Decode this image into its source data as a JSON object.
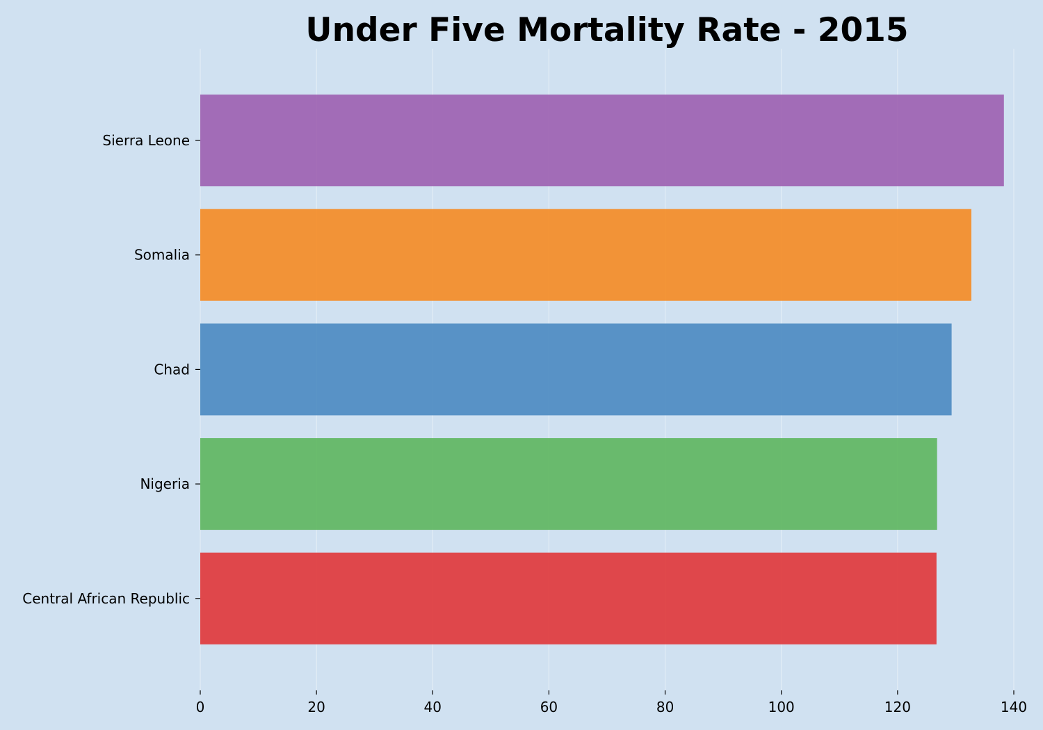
{
  "chart_data": {
    "type": "bar",
    "orientation": "horizontal",
    "title": "Under Five Mortality Rate - 2015",
    "xlabel": "",
    "ylabel": "",
    "categories": [
      "Sierra Leone",
      "Somalia",
      "Chad",
      "Nigeria",
      "Central African Republic"
    ],
    "values": [
      138.3,
      132.7,
      129.3,
      126.8,
      126.7
    ],
    "colors": [
      "#9c5fb0",
      "#f58b22",
      "#4a89c1",
      "#5db65e",
      "#e03639"
    ],
    "xlim": [
      0,
      140
    ],
    "xticks": [
      0,
      20,
      40,
      60,
      80,
      100,
      120,
      140
    ],
    "grid": "vertical",
    "legend": "none",
    "background": "#d0e1f1"
  }
}
